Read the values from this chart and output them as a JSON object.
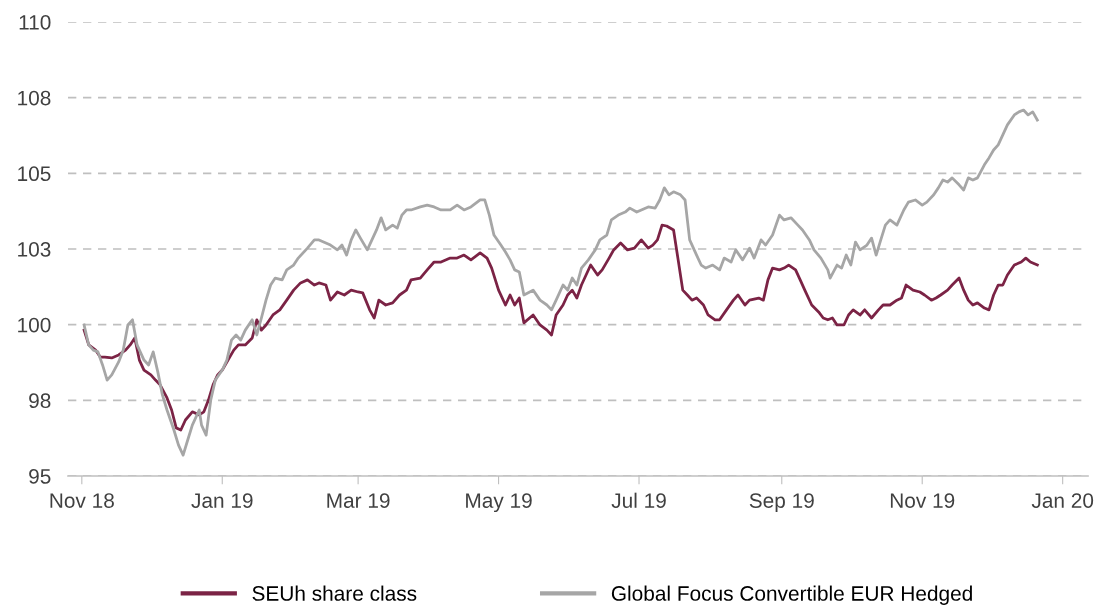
{
  "chart_data": {
    "type": "line",
    "ylim": [
      95,
      110
    ],
    "yticks": [
      95,
      {
        "value": 97.5,
        "label": "98"
      },
      100,
      {
        "value": 102.5,
        "label": "103"
      },
      105,
      {
        "value": 107.5,
        "label": "108"
      },
      110
    ],
    "xlim": [
      "2018-10-26",
      "2020-01-12"
    ],
    "xticks": [
      {
        "value": "2018-11-01",
        "label": "Nov 18"
      },
      {
        "value": "2019-01-01",
        "label": "Jan 19"
      },
      {
        "value": "2019-03-01",
        "label": "Mar 19"
      },
      {
        "value": "2019-05-01",
        "label": "May 19"
      },
      {
        "value": "2019-07-01",
        "label": "Jul 19"
      },
      {
        "value": "2019-09-01",
        "label": "Sep 19"
      },
      {
        "value": "2019-11-01",
        "label": "Nov 19"
      },
      {
        "value": "2020-01-01",
        "label": "Jan 20"
      }
    ],
    "grid": "y",
    "legend": "bottom",
    "line_style": "solid",
    "series": [
      {
        "name": "SEUh share class",
        "color": "#7b2345",
        "x": [
          "2018-11-02",
          "2018-11-04",
          "2018-11-07",
          "2018-11-09",
          "2018-11-11",
          "2018-11-14",
          "2018-11-17",
          "2018-11-20",
          "2018-11-22",
          "2018-11-24",
          "2018-11-26",
          "2018-11-28",
          "2018-12-01",
          "2018-12-03",
          "2018-12-05",
          "2018-12-08",
          "2018-12-10",
          "2018-12-12",
          "2018-12-14",
          "2018-12-16",
          "2018-12-19",
          "2018-12-22",
          "2018-12-24",
          "2018-12-26",
          "2018-12-28",
          "2018-12-30",
          "2019-01-01",
          "2019-01-04",
          "2019-01-06",
          "2019-01-08",
          "2019-01-11",
          "2019-01-14",
          "2019-01-16",
          "2019-01-18",
          "2019-01-20",
          "2019-01-23",
          "2019-01-26",
          "2019-01-29",
          "2019-02-01",
          "2019-02-04",
          "2019-02-07",
          "2019-02-10",
          "2019-02-12",
          "2019-02-15",
          "2019-02-17",
          "2019-02-20",
          "2019-02-23",
          "2019-02-26",
          "2019-03-01",
          "2019-03-03",
          "2019-03-06",
          "2019-03-08",
          "2019-03-10",
          "2019-03-13",
          "2019-03-16",
          "2019-03-19",
          "2019-03-22",
          "2019-03-24",
          "2019-03-28",
          "2019-03-31",
          "2019-04-03",
          "2019-04-06",
          "2019-04-10",
          "2019-04-13",
          "2019-04-16",
          "2019-04-19",
          "2019-04-23",
          "2019-04-26",
          "2019-04-28",
          "2019-05-01",
          "2019-05-04",
          "2019-05-06",
          "2019-05-08",
          "2019-05-10",
          "2019-05-12",
          "2019-05-16",
          "2019-05-19",
          "2019-05-22",
          "2019-05-24",
          "2019-05-26",
          "2019-05-29",
          "2019-05-31",
          "2019-06-02",
          "2019-06-04",
          "2019-06-06",
          "2019-06-10",
          "2019-06-13",
          "2019-06-15",
          "2019-06-18",
          "2019-06-20",
          "2019-06-23",
          "2019-06-26",
          "2019-06-29",
          "2019-07-02",
          "2019-07-05",
          "2019-07-07",
          "2019-07-09",
          "2019-07-11",
          "2019-07-13",
          "2019-07-16",
          "2019-07-18",
          "2019-07-20",
          "2019-07-22",
          "2019-07-24",
          "2019-07-26",
          "2019-07-29",
          "2019-07-31",
          "2019-08-03",
          "2019-08-05",
          "2019-08-08",
          "2019-08-11",
          "2019-08-13",
          "2019-08-16",
          "2019-08-18",
          "2019-08-22",
          "2019-08-24",
          "2019-08-26",
          "2019-08-28",
          "2019-08-31",
          "2019-09-02",
          "2019-09-04",
          "2019-09-07",
          "2019-09-09",
          "2019-09-11",
          "2019-09-14",
          "2019-09-17",
          "2019-09-19",
          "2019-09-21",
          "2019-09-23",
          "2019-09-25",
          "2019-09-28",
          "2019-09-30",
          "2019-10-02",
          "2019-10-05",
          "2019-10-07",
          "2019-10-10",
          "2019-10-13",
          "2019-10-15",
          "2019-10-18",
          "2019-10-21",
          "2019-10-23",
          "2019-10-25",
          "2019-10-28",
          "2019-10-31",
          "2019-11-02",
          "2019-11-05",
          "2019-11-07",
          "2019-11-09",
          "2019-11-12",
          "2019-11-14",
          "2019-11-17",
          "2019-11-19",
          "2019-11-21",
          "2019-11-23",
          "2019-11-25",
          "2019-11-28",
          "2019-11-30",
          "2019-12-02",
          "2019-12-04",
          "2019-12-06",
          "2019-12-08",
          "2019-12-11",
          "2019-12-14",
          "2019-12-16",
          "2019-12-18",
          "2019-12-21"
        ],
        "values": [
          99.82,
          99.33,
          99.16,
          98.93,
          98.93,
          98.9,
          99.0,
          99.16,
          99.33,
          99.56,
          98.83,
          98.5,
          98.34,
          98.17,
          98.01,
          97.58,
          97.18,
          96.59,
          96.52,
          96.85,
          97.12,
          97.02,
          97.12,
          97.51,
          98.01,
          98.34,
          98.5,
          98.9,
          99.16,
          99.33,
          99.33,
          99.56,
          100.16,
          99.82,
          99.99,
          100.32,
          100.49,
          100.81,
          101.14,
          101.38,
          101.48,
          101.31,
          101.38,
          101.31,
          100.81,
          101.08,
          100.98,
          101.14,
          101.08,
          101.05,
          100.49,
          100.22,
          100.81,
          100.65,
          100.72,
          100.98,
          101.14,
          101.48,
          101.54,
          101.81,
          102.07,
          102.07,
          102.2,
          102.2,
          102.3,
          102.14,
          102.37,
          102.2,
          101.87,
          101.14,
          100.65,
          100.98,
          100.65,
          100.88,
          100.06,
          100.32,
          99.99,
          99.82,
          99.66,
          100.32,
          100.65,
          100.98,
          101.14,
          100.88,
          101.31,
          101.97,
          101.64,
          101.81,
          102.2,
          102.47,
          102.7,
          102.47,
          102.53,
          102.8,
          102.53,
          102.63,
          102.8,
          103.29,
          103.26,
          103.13,
          102.14,
          101.14,
          100.98,
          100.81,
          100.88,
          100.65,
          100.32,
          100.16,
          100.16,
          100.49,
          100.81,
          100.98,
          100.65,
          100.81,
          100.88,
          100.81,
          101.48,
          101.87,
          101.81,
          101.87,
          101.97,
          101.81,
          101.48,
          101.14,
          100.65,
          100.42,
          100.22,
          100.16,
          100.22,
          99.99,
          99.99,
          100.32,
          100.49,
          100.32,
          100.49,
          100.22,
          100.49,
          100.65,
          100.65,
          100.81,
          100.88,
          101.31,
          101.14,
          101.08,
          100.98,
          100.81,
          100.88,
          100.98,
          101.14,
          101.31,
          101.54,
          101.14,
          100.81,
          100.65,
          100.72,
          100.55,
          100.49,
          100.98,
          101.31,
          101.31,
          101.64,
          101.97,
          102.07,
          102.2,
          102.07,
          101.97
        ]
      },
      {
        "name": "Global Focus Convertible EUR Hedged",
        "color": "#a6a6a6",
        "x": [
          "2018-11-02",
          "2018-11-04",
          "2018-11-06",
          "2018-11-08",
          "2018-11-10",
          "2018-11-12",
          "2018-11-14",
          "2018-11-17",
          "2018-11-19",
          "2018-11-21",
          "2018-11-23",
          "2018-11-25",
          "2018-11-28",
          "2018-11-30",
          "2018-12-02",
          "2018-12-04",
          "2018-12-06",
          "2018-12-08",
          "2018-12-11",
          "2018-12-13",
          "2018-12-15",
          "2018-12-17",
          "2018-12-19",
          "2018-12-22",
          "2018-12-23",
          "2018-12-25",
          "2018-12-27",
          "2018-12-29",
          "2019-01-01",
          "2019-01-03",
          "2019-01-05",
          "2019-01-07",
          "2019-01-09",
          "2019-01-11",
          "2019-01-14",
          "2019-01-16",
          "2019-01-18",
          "2019-01-20",
          "2019-01-22",
          "2019-01-24",
          "2019-01-27",
          "2019-01-29",
          "2019-02-01",
          "2019-02-03",
          "2019-02-07",
          "2019-02-10",
          "2019-02-12",
          "2019-02-15",
          "2019-02-17",
          "2019-02-20",
          "2019-02-22",
          "2019-02-24",
          "2019-02-26",
          "2019-02-28",
          "2019-03-02",
          "2019-03-05",
          "2019-03-07",
          "2019-03-09",
          "2019-03-11",
          "2019-03-13",
          "2019-03-16",
          "2019-03-18",
          "2019-03-20",
          "2019-03-22",
          "2019-03-24",
          "2019-03-28",
          "2019-03-31",
          "2019-04-03",
          "2019-04-06",
          "2019-04-10",
          "2019-04-13",
          "2019-04-16",
          "2019-04-19",
          "2019-04-23",
          "2019-04-25",
          "2019-04-27",
          "2019-04-29",
          "2019-05-02",
          "2019-05-04",
          "2019-05-06",
          "2019-05-08",
          "2019-05-10",
          "2019-05-12",
          "2019-05-16",
          "2019-05-19",
          "2019-05-22",
          "2019-05-24",
          "2019-05-26",
          "2019-05-29",
          "2019-05-31",
          "2019-06-02",
          "2019-06-04",
          "2019-06-06",
          "2019-06-09",
          "2019-06-12",
          "2019-06-14",
          "2019-06-17",
          "2019-06-19",
          "2019-06-22",
          "2019-06-25",
          "2019-06-27",
          "2019-06-30",
          "2019-07-02",
          "2019-07-05",
          "2019-07-08",
          "2019-07-10",
          "2019-07-12",
          "2019-07-14",
          "2019-07-16",
          "2019-07-19",
          "2019-07-21",
          "2019-07-23",
          "2019-07-26",
          "2019-07-28",
          "2019-07-30",
          "2019-08-02",
          "2019-08-05",
          "2019-08-07",
          "2019-08-10",
          "2019-08-12",
          "2019-08-15",
          "2019-08-18",
          "2019-08-20",
          "2019-08-23",
          "2019-08-25",
          "2019-08-28",
          "2019-08-31",
          "2019-09-02",
          "2019-09-05",
          "2019-09-08",
          "2019-09-10",
          "2019-09-13",
          "2019-09-15",
          "2019-09-18",
          "2019-09-21",
          "2019-09-22",
          "2019-09-25",
          "2019-09-27",
          "2019-09-29",
          "2019-10-01",
          "2019-10-03",
          "2019-10-05",
          "2019-10-08",
          "2019-10-10",
          "2019-10-12",
          "2019-10-14",
          "2019-10-16",
          "2019-10-18",
          "2019-10-21",
          "2019-10-24",
          "2019-10-26",
          "2019-10-29",
          "2019-11-01",
          "2019-11-03",
          "2019-11-06",
          "2019-11-08",
          "2019-11-10",
          "2019-11-12",
          "2019-11-14",
          "2019-11-17",
          "2019-11-19",
          "2019-11-21",
          "2019-11-23",
          "2019-11-25",
          "2019-11-28",
          "2019-11-30",
          "2019-12-02",
          "2019-12-04",
          "2019-12-06",
          "2019-12-08",
          "2019-12-11",
          "2019-12-13",
          "2019-12-15",
          "2019-12-17",
          "2019-12-19",
          "2019-12-21"
        ],
        "values": [
          99.99,
          99.33,
          99.16,
          99.1,
          98.67,
          98.17,
          98.34,
          98.77,
          99.16,
          99.99,
          100.16,
          99.33,
          98.83,
          98.67,
          99.1,
          98.44,
          97.68,
          97.18,
          96.52,
          96.02,
          95.69,
          96.19,
          96.68,
          97.18,
          96.68,
          96.35,
          97.51,
          98.17,
          98.5,
          98.83,
          99.49,
          99.66,
          99.49,
          99.82,
          100.16,
          99.66,
          100.22,
          100.81,
          101.31,
          101.54,
          101.48,
          101.81,
          101.97,
          102.2,
          102.53,
          102.8,
          102.8,
          102.7,
          102.63,
          102.47,
          102.63,
          102.3,
          102.8,
          103.13,
          102.86,
          102.47,
          102.8,
          103.13,
          103.53,
          103.13,
          103.29,
          103.19,
          103.62,
          103.79,
          103.79,
          103.89,
          103.95,
          103.89,
          103.79,
          103.79,
          103.95,
          103.79,
          103.89,
          104.12,
          104.12,
          103.62,
          102.96,
          102.63,
          102.4,
          102.14,
          101.81,
          101.74,
          100.98,
          101.14,
          100.81,
          100.65,
          100.49,
          100.81,
          101.31,
          101.14,
          101.54,
          101.31,
          101.87,
          102.14,
          102.47,
          102.8,
          102.96,
          103.46,
          103.62,
          103.72,
          103.85,
          103.72,
          103.79,
          103.89,
          103.85,
          104.12,
          104.52,
          104.29,
          104.39,
          104.29,
          104.12,
          102.8,
          102.3,
          101.97,
          101.87,
          101.97,
          101.81,
          102.2,
          102.07,
          102.47,
          102.14,
          102.53,
          102.2,
          102.8,
          102.63,
          102.96,
          103.62,
          103.46,
          103.53,
          103.29,
          103.13,
          102.8,
          102.47,
          102.2,
          101.81,
          101.54,
          101.97,
          101.87,
          102.3,
          101.97,
          102.73,
          102.47,
          102.63,
          102.86,
          102.3,
          102.8,
          103.29,
          103.46,
          103.29,
          103.79,
          104.05,
          104.12,
          103.95,
          104.05,
          104.29,
          104.52,
          104.78,
          104.71,
          104.85,
          104.62,
          104.45,
          104.85,
          104.78,
          104.85,
          105.28,
          105.51,
          105.77,
          105.94,
          106.27,
          106.6,
          106.93,
          107.03,
          107.09,
          106.93,
          107.03,
          106.76
        ]
      }
    ]
  }
}
